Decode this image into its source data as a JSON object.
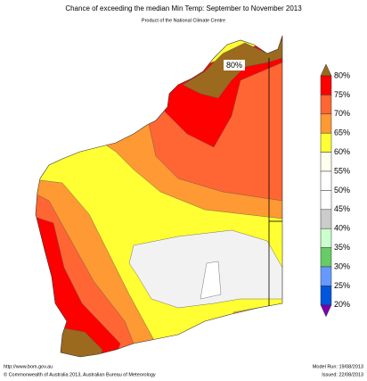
{
  "header": {
    "title": "Chance of exceeding the median Min Temp: September to November 2013",
    "subtitle": "Product of the National Climate Centre"
  },
  "map": {
    "annotation": "80%"
  },
  "legend": {
    "top_color": "#9b6a1e",
    "bottom_color": "#7a00b0",
    "labels": [
      "80%",
      "75%",
      "70%",
      "65%",
      "60%",
      "55%",
      "50%",
      "45%",
      "40%",
      "35%",
      "30%",
      "25%",
      "20%"
    ],
    "colors": [
      "#ff0000",
      "#ff6633",
      "#ff9933",
      "#ffff33",
      "#ffffee",
      "#ffffff",
      "#ffffff",
      "#cccccc",
      "#ccffcc",
      "#66cc66",
      "#6699ff",
      "#0055dd"
    ]
  },
  "footer": {
    "url": "http://www.bom.gov.au",
    "copyright": "©  Commonwealth of Australia 2013, Australian Bureau of Meteorology",
    "model_run": "Model Run: 19/08/2013",
    "issued": "Issued: 22/08/2013"
  }
}
